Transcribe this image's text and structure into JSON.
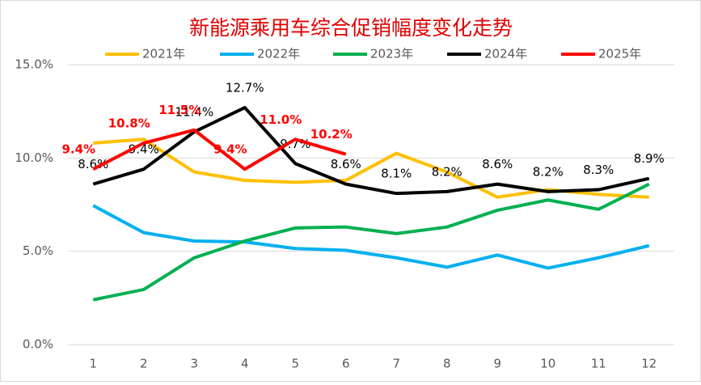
{
  "chart_data": {
    "type": "line",
    "title": "新能源乘用车综合促销幅度变化走势",
    "categories": [
      "1",
      "2",
      "3",
      "4",
      "5",
      "6",
      "7",
      "8",
      "9",
      "10",
      "11",
      "12"
    ],
    "ylim": [
      0,
      15
    ],
    "yticks": [
      {
        "value": 0,
        "label": "0.0%"
      },
      {
        "value": 5,
        "label": "5.0%"
      },
      {
        "value": 10,
        "label": "10.0%"
      },
      {
        "value": 15,
        "label": "15.0%"
      }
    ],
    "grid": true,
    "legend": "top",
    "series": [
      {
        "name": "2021年",
        "color": "#ffc000",
        "values": [
          10.8,
          11.0,
          9.25,
          8.8,
          8.7,
          8.8,
          10.25,
          9.25,
          7.9,
          8.3,
          8.05,
          7.9
        ]
      },
      {
        "name": "2022年",
        "color": "#00b0f0",
        "values": [
          7.45,
          6.0,
          5.55,
          5.5,
          5.15,
          5.05,
          4.65,
          4.15,
          4.8,
          4.1,
          4.65,
          5.3
        ]
      },
      {
        "name": "2023年",
        "color": "#00b050",
        "values": [
          2.4,
          2.95,
          4.65,
          5.55,
          6.25,
          6.3,
          5.95,
          6.3,
          7.2,
          7.75,
          7.25,
          8.6
        ]
      },
      {
        "name": "2024年",
        "color": "#000000",
        "values": [
          8.6,
          9.4,
          11.4,
          12.7,
          9.7,
          8.6,
          8.1,
          8.2,
          8.6,
          8.2,
          8.3,
          8.9
        ],
        "value_labels": [
          "8.6%",
          "9.4%",
          "11.4%",
          "12.7%",
          "9.7%",
          "8.6%",
          "8.1%",
          "8.2%",
          "8.6%",
          "8.2%",
          "8.3%",
          "8.9%"
        ]
      },
      {
        "name": "2025年",
        "color": "#ff0000",
        "values": [
          9.4,
          10.8,
          11.5,
          9.4,
          11.0,
          10.2,
          null,
          null,
          null,
          null,
          null,
          null
        ],
        "value_labels": [
          "9.4%",
          "10.8%",
          "11.5%",
          "9.4%",
          "11.0%",
          "10.2%",
          null,
          null,
          null,
          null,
          null,
          null
        ]
      }
    ]
  }
}
